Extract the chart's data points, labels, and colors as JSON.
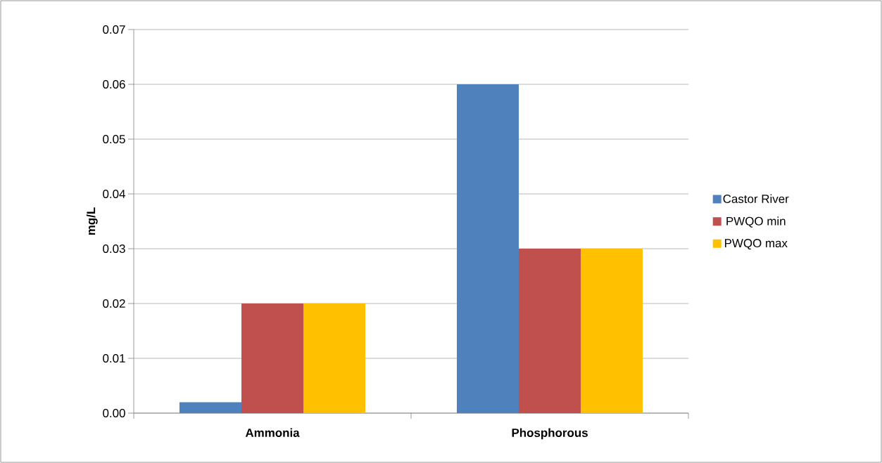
{
  "chart_data": {
    "type": "bar",
    "ylabel": "mg/L",
    "categories": [
      "Ammonia",
      "Phosphorous"
    ],
    "series": [
      {
        "name": "Castor River",
        "color": "#4f81bd",
        "values": [
          0.002,
          0.06
        ]
      },
      {
        "name": "PWQO min",
        "color": "#c0504d",
        "values": [
          0.02,
          0.03
        ]
      },
      {
        "name": "PWQO max",
        "color": "#ffc000",
        "values": [
          0.02,
          0.03
        ]
      }
    ],
    "ylim": [
      0,
      0.07
    ],
    "yticks": [
      {
        "value": 0,
        "label": "0.00"
      },
      0.01,
      0.02,
      0.03,
      0.04,
      0.05,
      0.06,
      0.07
    ],
    "grid": "y",
    "legend": "right"
  }
}
